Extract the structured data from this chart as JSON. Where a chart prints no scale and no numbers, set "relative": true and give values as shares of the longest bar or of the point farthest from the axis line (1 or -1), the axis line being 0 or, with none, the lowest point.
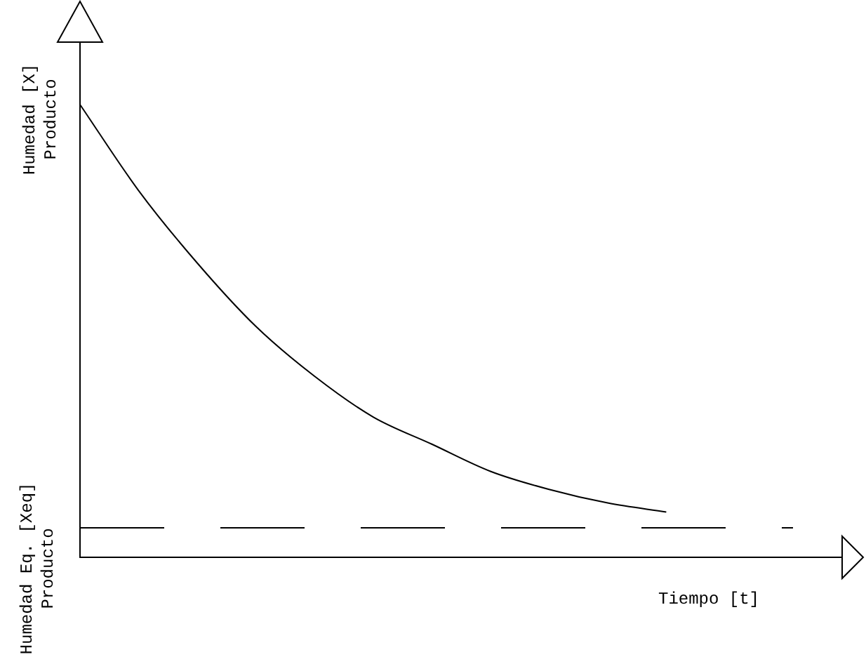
{
  "chart_data": {
    "type": "line",
    "relative": true,
    "ylabel": "Humedad [X] Producto",
    "xlabel": "Tiempo [t]",
    "categories": [
      null,
      null,
      null,
      null,
      null,
      null,
      null,
      null,
      null,
      null,
      null,
      null,
      null,
      null
    ],
    "series": [
      {
        "color": "#000000",
        "values": [
          1,
          0.81,
          0.65,
          0.51,
          0.4,
          0.31,
          0.25,
          0.19,
          0.15,
          0.12,
          0.1,
          null,
          null,
          null
        ]
      }
    ],
    "ref_lines": [
      {
        "axis": "y",
        "value": 0.065,
        "label": "Humedad Eq. [Xeq] Producto",
        "line_style": "dashed",
        "color": "#000000"
      }
    ],
    "legend": false,
    "grid": false,
    "tick_labels": false,
    "marker": "none",
    "line_style": "solid"
  }
}
